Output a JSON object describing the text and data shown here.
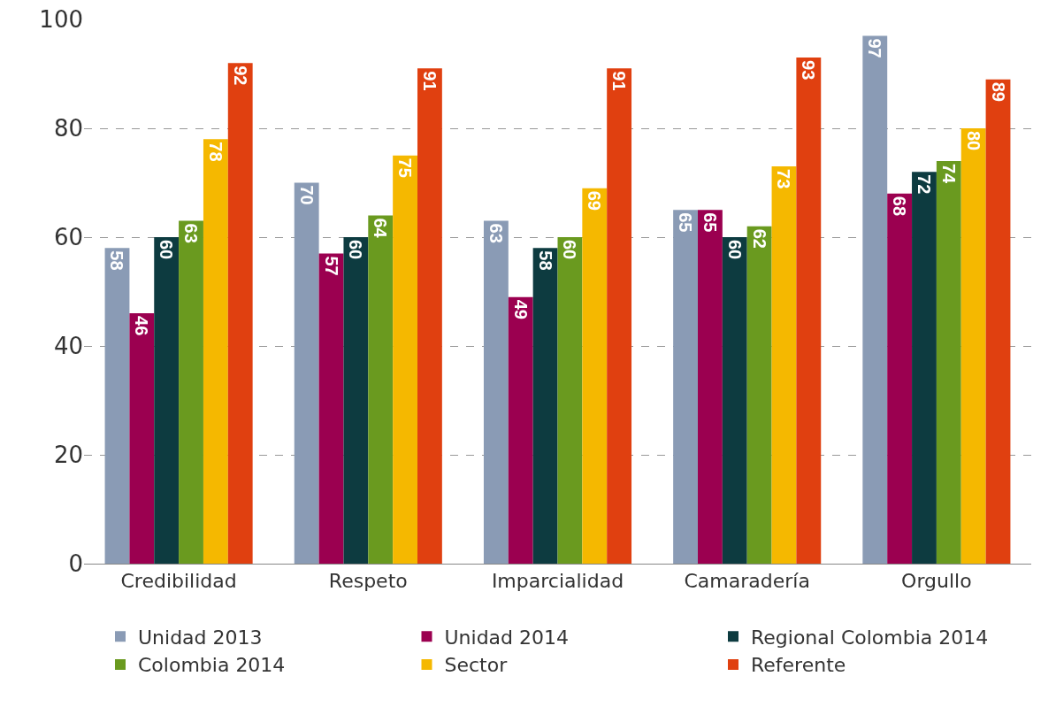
{
  "chart_data": {
    "type": "bar",
    "categories": [
      "Credibilidad",
      "Respeto",
      "Imparcialidad",
      "Camaradería",
      "Orgullo"
    ],
    "series": [
      {
        "name": "Unidad 2013",
        "color": "#8a9bb5",
        "values": [
          58,
          70,
          63,
          65,
          97
        ]
      },
      {
        "name": "Unidad 2014",
        "color": "#9b0050",
        "values": [
          46,
          57,
          49,
          65,
          68
        ]
      },
      {
        "name": "Regional Colombia 2014",
        "color": "#0d3b40",
        "values": [
          60,
          60,
          58,
          60,
          72
        ]
      },
      {
        "name": "Colombia 2014",
        "color": "#6a9a1f",
        "values": [
          63,
          64,
          60,
          62,
          74
        ]
      },
      {
        "name": "Sector",
        "color": "#f5b800",
        "values": [
          78,
          75,
          69,
          73,
          80
        ]
      },
      {
        "name": "Referente",
        "color": "#e04010",
        "values": [
          92,
          91,
          91,
          93,
          89
        ]
      }
    ],
    "ylim": [
      0,
      100
    ],
    "yticks": [
      0,
      20,
      40,
      60,
      80,
      100
    ],
    "grid": "y",
    "legend": "bottom",
    "data_labels": true
  }
}
